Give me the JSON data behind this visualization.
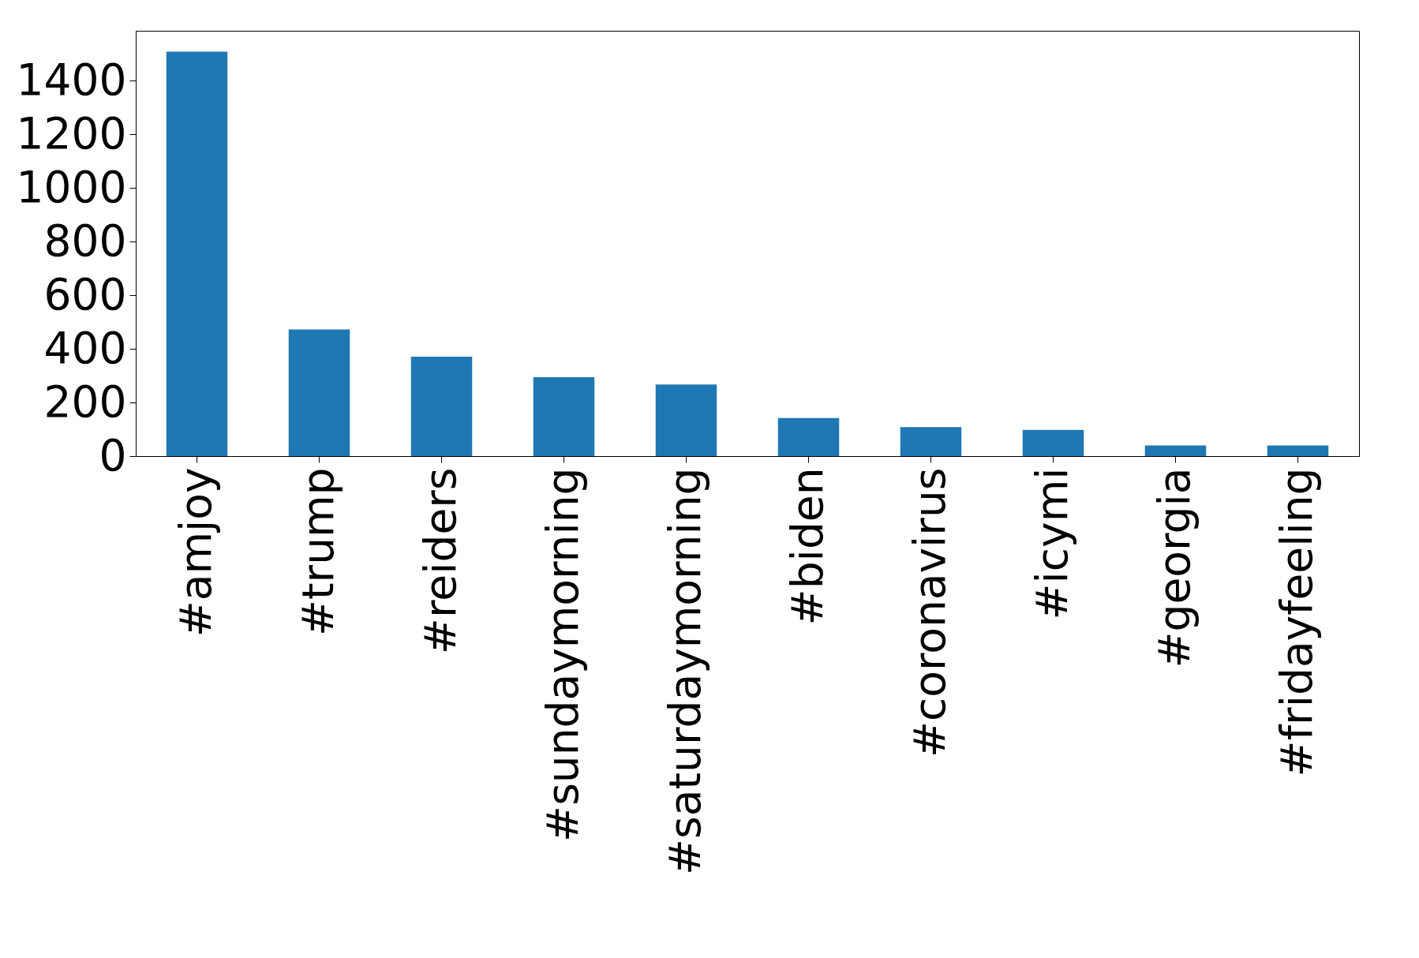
{
  "chart_data": {
    "type": "bar",
    "categories": [
      "#amjoy",
      "#trump",
      "#reiders",
      "#sundaymorning",
      "#saturdaymorning",
      "#biden",
      "#coronavirus",
      "#icymi",
      "#georgia",
      "#fridayfeeling"
    ],
    "values": [
      1508,
      472,
      371,
      294,
      267,
      142,
      108,
      98,
      40,
      40
    ],
    "color": "#1f77b4",
    "ylim": [
      0,
      1586
    ],
    "yticks": [
      0,
      200,
      400,
      600,
      800,
      1000,
      1200,
      1400
    ],
    "grid": false
  }
}
